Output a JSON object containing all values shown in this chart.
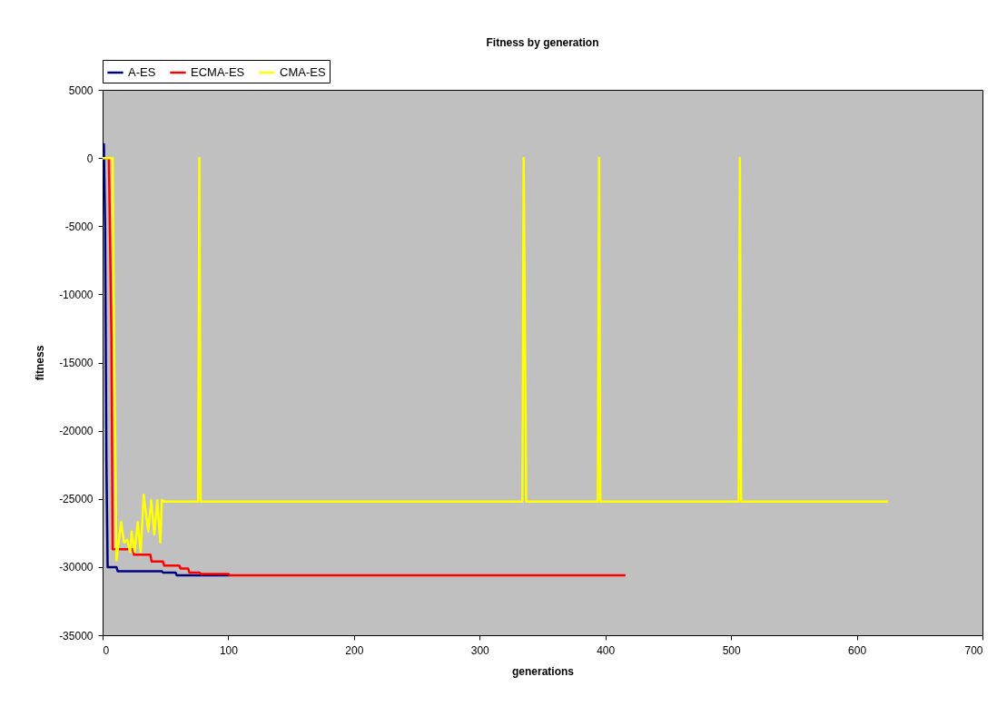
{
  "chart_data": {
    "type": "line",
    "title": "Fitness by generation",
    "xlabel": "generations",
    "ylabel": "fitness",
    "xlim": [
      0,
      700
    ],
    "xticks": [
      0,
      100,
      200,
      300,
      400,
      500,
      600,
      700
    ],
    "ylim": [
      -35000,
      5000
    ],
    "yticks": [
      -35000,
      -30000,
      -25000,
      -20000,
      -15000,
      -10000,
      -5000,
      0,
      5000
    ],
    "grid": false,
    "legend": "top",
    "series": [
      {
        "name": "A-ES",
        "color": "#000080",
        "x": [
          0,
          1,
          2,
          3,
          4,
          11,
          12,
          47,
          48,
          58,
          59,
          101
        ],
        "values": [
          1000,
          1000,
          -5000,
          -22000,
          -30000,
          -30000,
          -30300,
          -30300,
          -30400,
          -30400,
          -30600,
          -30600
        ]
      },
      {
        "name": "ECMA-ES",
        "color": "#ff0000",
        "x": [
          0,
          5,
          7,
          8,
          24,
          25,
          38,
          39,
          48,
          49,
          61,
          62,
          68,
          69,
          77,
          78,
          100,
          101,
          416
        ],
        "values": [
          0,
          0,
          -13000,
          -28700,
          -28700,
          -29100,
          -29100,
          -29600,
          -29600,
          -29900,
          -29900,
          -30100,
          -30100,
          -30400,
          -30400,
          -30500,
          -30500,
          -30600,
          -30600
        ]
      },
      {
        "name": "CMA-ES",
        "color": "#ffff00",
        "x": [
          0,
          8,
          9,
          11,
          14.7,
          17.1,
          19.5,
          21.9,
          23.1,
          25.5,
          27.9,
          30.3,
          32.7,
          36.3,
          38.7,
          41.1,
          43.5,
          45.9,
          47.1,
          49.5,
          76,
          77,
          78,
          334,
          335,
          337,
          394,
          395,
          396,
          506,
          507,
          508,
          625
        ],
        "values": [
          0,
          0,
          -12000,
          -29500,
          -26700,
          -28200,
          -28000,
          -28900,
          -27400,
          -28900,
          -26700,
          -28900,
          -24700,
          -27400,
          -25100,
          -27600,
          -25100,
          -28200,
          -25100,
          -25200,
          -25200,
          0,
          -25200,
          -25200,
          0,
          -25200,
          -25200,
          0,
          -25200,
          -25200,
          0,
          -25200,
          -25200
        ]
      }
    ]
  }
}
